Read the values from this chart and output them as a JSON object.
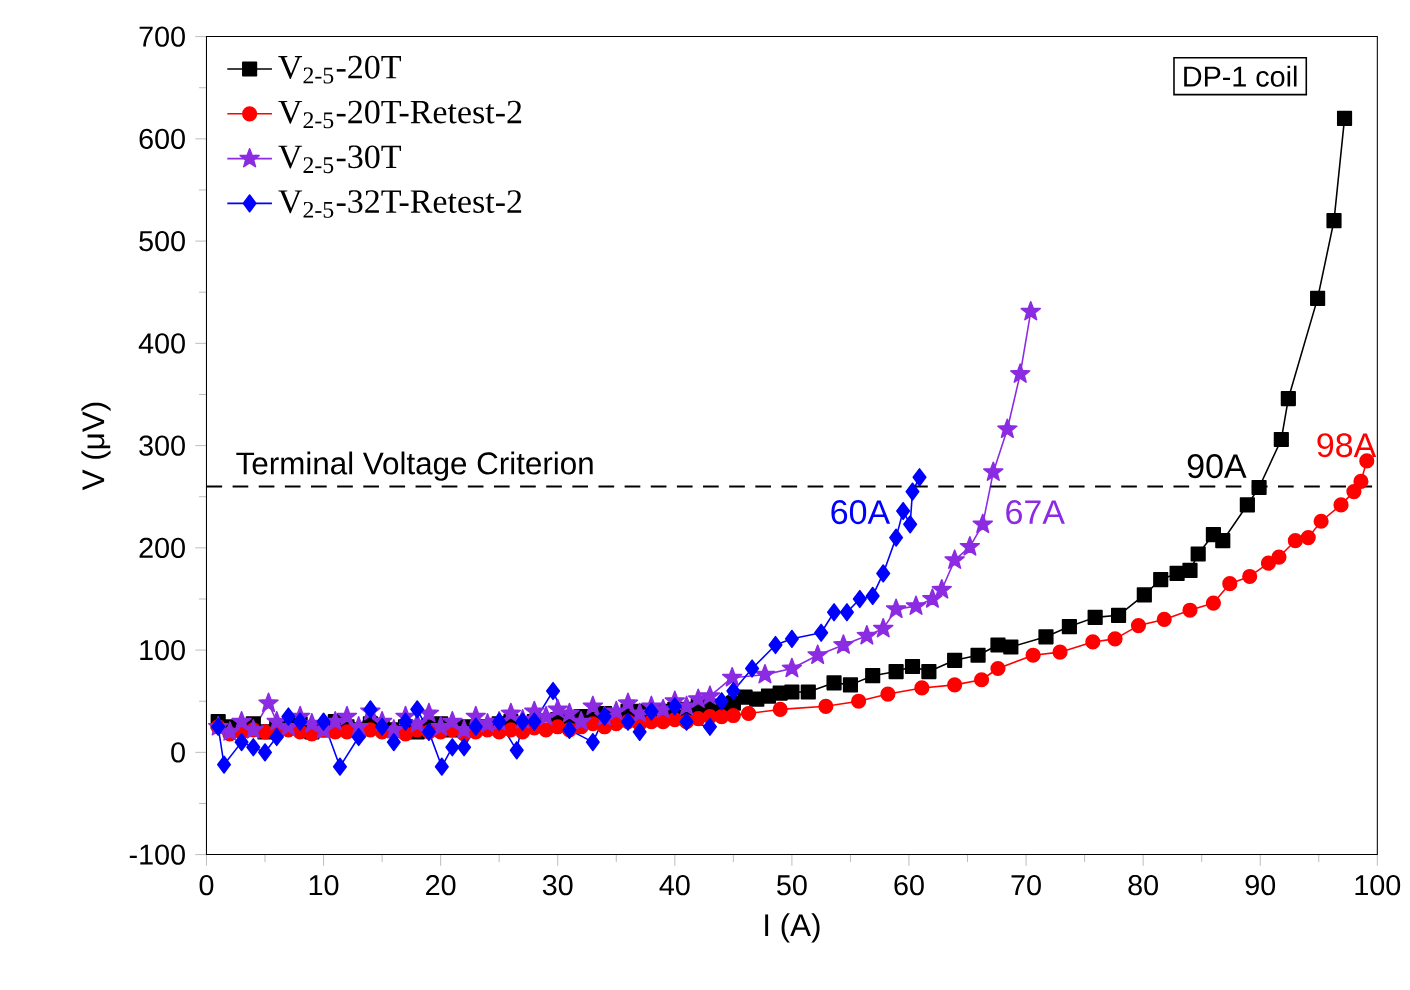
{
  "chart_data": {
    "type": "line",
    "xlabel": "I (A)",
    "ylabel": "V (μV)",
    "xlim": [
      0,
      100
    ],
    "ylim": [
      -100,
      700
    ],
    "xticks": [
      0,
      10,
      20,
      30,
      40,
      50,
      60,
      70,
      80,
      90,
      100
    ],
    "yticks": [
      -100,
      0,
      100,
      200,
      300,
      400,
      500,
      600,
      700
    ],
    "legend": "top left",
    "grid": false,
    "series": [
      {
        "name": "V$_{2-5}$-20T",
        "color": "#000000",
        "marker": "square",
        "x": [
          1,
          2,
          3,
          4,
          5,
          6,
          7,
          8,
          9,
          10,
          11,
          12,
          13,
          14,
          15,
          16,
          17,
          18,
          19,
          20,
          21,
          22,
          24,
          25,
          26,
          27,
          28,
          30,
          31,
          32,
          33,
          34,
          35,
          36,
          37,
          38,
          39,
          40,
          41,
          42,
          43,
          44,
          45,
          46,
          47,
          48,
          49,
          50,
          51.4,
          53.6,
          55,
          56.9,
          58.9,
          60.3,
          61.7,
          63.9,
          65.9,
          67.6,
          68.7,
          71.7,
          73.7,
          75.9,
          77.9,
          80.1,
          81.5,
          82.9,
          84,
          84.7,
          86,
          86.8,
          88.9,
          89.9,
          91.8,
          92.4,
          94.9,
          96.3,
          97.2
        ],
        "values": [
          30,
          25,
          22,
          28,
          20,
          25,
          25,
          28,
          20,
          22,
          30,
          25,
          22,
          28,
          25,
          22,
          25,
          20,
          25,
          28,
          22,
          25,
          25,
          28,
          30,
          28,
          30,
          32,
          30,
          35,
          35,
          38,
          35,
          40,
          40,
          38,
          40,
          42,
          42,
          45,
          45,
          45,
          48,
          54,
          52,
          55,
          58,
          59,
          59,
          68,
          66,
          75,
          79,
          84,
          79,
          90,
          95,
          105,
          103,
          113,
          123,
          132,
          134,
          154,
          169,
          175,
          178,
          194,
          213,
          207,
          242,
          259,
          306,
          346,
          444,
          520,
          620
        ]
      },
      {
        "name": "V$_{2-5}$-20T-Retest-2",
        "color": "#ff0000",
        "marker": "circle",
        "x": [
          1,
          2,
          3,
          4,
          5,
          6,
          7,
          8,
          9,
          10,
          11,
          12,
          13,
          14,
          15,
          16,
          17,
          18,
          19,
          20,
          21,
          22,
          23,
          24,
          25,
          26,
          27,
          28,
          29,
          30,
          31,
          32,
          33,
          34,
          35,
          36,
          37,
          38,
          39,
          40,
          41,
          42,
          43,
          44,
          45,
          46.3,
          49,
          52.9,
          55.7,
          58.2,
          61.1,
          63.9,
          66.2,
          67.6,
          70.6,
          72.9,
          75.7,
          77.6,
          79.6,
          81.8,
          84,
          86,
          87.4,
          89.1,
          90.7,
          91.6,
          93,
          94.1,
          95.2,
          96.9,
          98,
          98.6,
          99.1
        ],
        "values": [
          25,
          18,
          20,
          22,
          20,
          18,
          22,
          20,
          18,
          22,
          20,
          20,
          18,
          22,
          20,
          20,
          18,
          22,
          20,
          20,
          22,
          18,
          20,
          22,
          20,
          22,
          20,
          24,
          22,
          25,
          22,
          25,
          28,
          25,
          28,
          30,
          28,
          30,
          30,
          32,
          30,
          33,
          35,
          35,
          36,
          38,
          42,
          45,
          50,
          57,
          63,
          66,
          71,
          82,
          95,
          98,
          108,
          111,
          124,
          130,
          139,
          146,
          165,
          172,
          185,
          191,
          207,
          210,
          226,
          242,
          255,
          265,
          285
        ]
      },
      {
        "name": "V$_{2-5}$-30T",
        "color": "#8b2be2",
        "marker": "star",
        "x": [
          1,
          2,
          3,
          4,
          5.3,
          6,
          7,
          8,
          9,
          10,
          11,
          12,
          13,
          14,
          15,
          16,
          17,
          18,
          19,
          20,
          21,
          22,
          23,
          24,
          25,
          26,
          27,
          28,
          29,
          30,
          31,
          32,
          33,
          34,
          35,
          36,
          37,
          38,
          39,
          40,
          41,
          42,
          43,
          44.9,
          47.7,
          50,
          52.2,
          54.4,
          56.4,
          57.8,
          58.9,
          60.6,
          62,
          62.8,
          63.9,
          65.2,
          66.3,
          67.2,
          68.4,
          69.5,
          70.4
        ],
        "values": [
          25,
          20,
          30,
          22,
          48,
          30,
          25,
          35,
          28,
          22,
          30,
          35,
          25,
          40,
          30,
          22,
          35,
          28,
          38,
          25,
          30,
          22,
          35,
          28,
          30,
          38,
          32,
          40,
          35,
          42,
          38,
          30,
          45,
          35,
          40,
          48,
          38,
          45,
          42,
          50,
          45,
          52,
          55,
          73,
          76,
          82,
          95,
          105,
          114,
          121,
          140,
          143,
          150,
          159,
          188,
          201,
          223,
          274,
          316,
          370,
          431
        ]
      },
      {
        "name": "V$_{2-5}$-32T-Retest-2",
        "color": "#0000ff",
        "marker": "diamond",
        "x": [
          1,
          1.5,
          3,
          4,
          5,
          6,
          7,
          8,
          10,
          11.4,
          13,
          14,
          15,
          16,
          17,
          18,
          19,
          20.1,
          21,
          22,
          23,
          25,
          26.5,
          27,
          28,
          29.6,
          31,
          33,
          34,
          36,
          37,
          38,
          40,
          41,
          43,
          44,
          45,
          46.6,
          48.6,
          50,
          52.5,
          53.6,
          54.7,
          55.8,
          56.9,
          57.8,
          58.9,
          59.5,
          60.1,
          60.3,
          60.9
        ],
        "values": [
          25,
          -12,
          10,
          5,
          0,
          15,
          35,
          30,
          30,
          -14,
          15,
          42,
          25,
          10,
          30,
          42,
          20,
          -14,
          5,
          5,
          25,
          30,
          2,
          30,
          30,
          60,
          22,
          10,
          35,
          30,
          20,
          40,
          45,
          30,
          25,
          50,
          60,
          82,
          105,
          111,
          117,
          137,
          137,
          150,
          153,
          175,
          210,
          236,
          223,
          255,
          269
        ]
      }
    ],
    "ref_lines": [
      {
        "axis": "y",
        "value": 260,
        "label": "Terminal Voltage Criterion",
        "line_style": "dashed",
        "color": "#000000"
      }
    ],
    "annotations": [
      {
        "text": "90A",
        "x": 90,
        "y": 260
      },
      {
        "text": "98A",
        "x": 98,
        "y": 260
      },
      {
        "text": "60A",
        "x": 60,
        "y": 260
      },
      {
        "text": "67A",
        "x": 67,
        "y": 260
      },
      "DP-1 coil"
    ]
  }
}
